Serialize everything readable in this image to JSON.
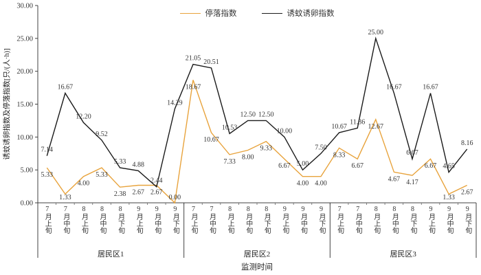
{
  "axes": {
    "y_title": "诱蚊诱卵指数及停落指数[只/(人·h)]",
    "x_title": "监测时间",
    "y_min": 0,
    "y_max": 30,
    "y_step": 5,
    "y_tick_labels": [
      "0.00",
      "5.00",
      "10.00",
      "15.00",
      "20.00",
      "25.00",
      "30.00"
    ]
  },
  "chart_data": {
    "type": "line",
    "title": "",
    "xlabel": "监测时间",
    "ylabel": "诱蚊诱卵指数及停落指数[只/(人·h)]",
    "ylim": [
      0,
      30
    ],
    "grid": false,
    "legend_position": "top",
    "data_labels": true,
    "group_labels": [
      "居民区1",
      "居民区2",
      "居民区3"
    ],
    "categories": [
      "7月上旬",
      "7月中旬",
      "8月上旬",
      "8月中旬",
      "8月下旬",
      "9月上旬",
      "9月中旬",
      "9月下旬",
      "7月上旬",
      "7月中旬",
      "8月上旬",
      "8月中旬",
      "8月下旬",
      "9月上旬",
      "9月中旬",
      "9月下旬",
      "7月上旬",
      "7月中旬",
      "8月上旬",
      "8月中旬",
      "8月下旬",
      "9月上旬",
      "9月中旬",
      "9月下旬"
    ],
    "series": [
      {
        "name": "停落指数",
        "color": "#E8A33C",
        "values": [
          5.33,
          1.33,
          4.0,
          5.33,
          2.38,
          2.67,
          2.67,
          0.0,
          18.67,
          10.67,
          7.33,
          8.0,
          9.33,
          6.67,
          4.0,
          4.0,
          8.33,
          6.67,
          12.67,
          4.67,
          4.17,
          6.67,
          1.33,
          2.67
        ]
      },
      {
        "name": "诱蚊诱卵指数",
        "color": "#1A1A1A",
        "values": [
          7.14,
          16.67,
          12.2,
          9.52,
          5.33,
          4.88,
          2.44,
          14.29,
          21.05,
          20.51,
          10.53,
          12.5,
          12.5,
          10.0,
          5.0,
          7.5,
          10.67,
          11.36,
          25.0,
          16.67,
          6.67,
          16.67,
          4.65,
          8.16
        ]
      }
    ]
  }
}
